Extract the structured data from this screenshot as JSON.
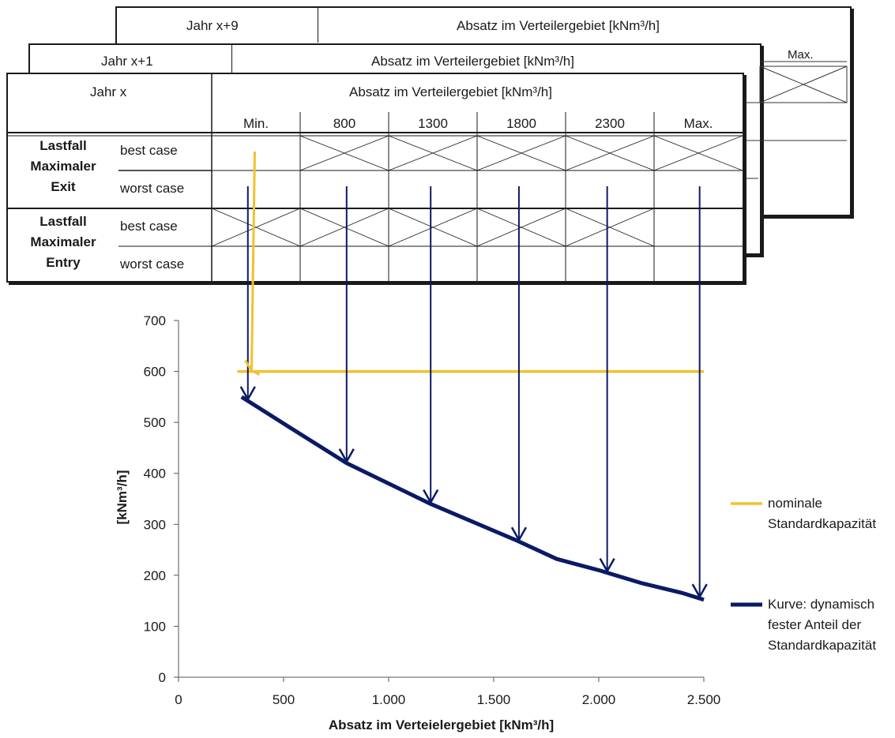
{
  "sheets": {
    "back": {
      "year_label": "Jahr x+9",
      "header": "Absatz im Verteilergebiet [kNm³/h]"
    },
    "mid": {
      "year_label": "Jahr x+1",
      "header": "Absatz im Verteilergebiet [kNm³/h]",
      "max_label": "Max."
    },
    "front": {
      "year_label": "Jahr x",
      "header": "Absatz im Verteilergebiet [kNm³/h]",
      "columns": [
        "Min.",
        "800",
        "1300",
        "1800",
        "2300",
        "Max."
      ],
      "groups": [
        {
          "lines": [
            "Lastfall",
            "Maximaler",
            "Exit"
          ],
          "rows": [
            "best case",
            "worst case"
          ]
        },
        {
          "lines": [
            "Lastfall",
            "Maximaler",
            "Entry"
          ],
          "rows": [
            "best case",
            "worst case"
          ]
        }
      ]
    }
  },
  "colors": {
    "yellow": "#f2c12e",
    "navy": "#0b1a66",
    "grid": "#333333"
  },
  "chart_data": {
    "type": "line",
    "xlabel": "Absatz im Verteielergebiet [kNm³/h]",
    "ylabel": "[kNm³/h]",
    "xlim": [
      0,
      2500
    ],
    "ylim": [
      0,
      700
    ],
    "x_ticks": [
      0,
      500,
      1000,
      1500,
      2000,
      2500
    ],
    "x_tick_labels": [
      "0",
      "500",
      "1.000",
      "1.500",
      "2.000",
      "2.500"
    ],
    "y_ticks": [
      0,
      100,
      200,
      300,
      400,
      500,
      600,
      700
    ],
    "y_tick_labels": [
      "0",
      "100",
      "200",
      "300",
      "400",
      "500",
      "600",
      "700"
    ],
    "series": [
      {
        "name": "nominale Standardkapazität",
        "color": "#f2c12e",
        "x": [
          280,
          2500
        ],
        "y": [
          600,
          600
        ]
      },
      {
        "name": "Kurve: dynamisch fester Anteil der Standardkapazität",
        "color": "#0b1a66",
        "x": [
          300,
          530,
          800,
          1000,
          1200,
          1400,
          1600,
          1800,
          2000,
          2200,
          2400,
          2500
        ],
        "y": [
          550,
          490,
          420,
          380,
          340,
          305,
          270,
          232,
          210,
          185,
          165,
          152
        ]
      }
    ],
    "arrow_x": [
      330,
      800,
      1200,
      1620,
      2040,
      2480
    ],
    "yellow_arrow_x": 280,
    "legend": [
      {
        "lines": [
          "nominale",
          "Standardkapazität"
        ],
        "color": "#f2c12e"
      },
      {
        "lines": [
          "Kurve: dynamisch",
          "fester Anteil der",
          "Standardkapazität"
        ],
        "color": "#0b1a66"
      }
    ],
    "legend_position": "right",
    "grid": false
  }
}
